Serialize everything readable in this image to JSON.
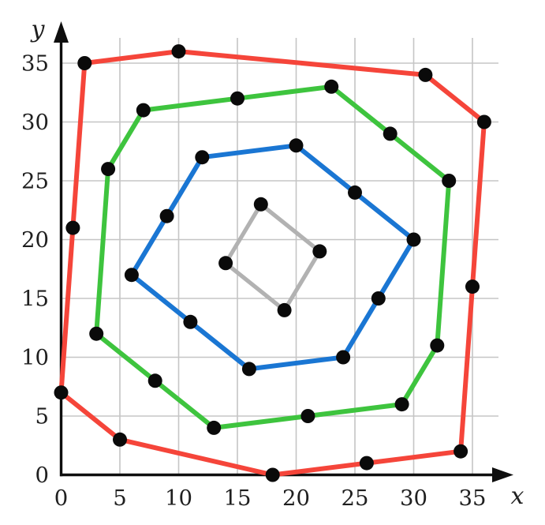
{
  "chart_data": {
    "type": "line",
    "title": "",
    "subtitle": "",
    "xlabel": "x",
    "ylabel": "y",
    "xlim": [
      0,
      38.5
    ],
    "ylim": [
      0,
      38.5
    ],
    "grid": true,
    "legend": "none",
    "x_ticks": [
      0,
      5,
      10,
      15,
      20,
      25,
      30,
      35
    ],
    "y_ticks": [
      0,
      5,
      10,
      15,
      20,
      25,
      30,
      35
    ],
    "marker_color": "#0a0a0a",
    "axis_color": "#0e0e0e",
    "grid_color": "#c5c5c5",
    "tick_label_color": "#1f1f1f",
    "series": [
      {
        "name": "outer-ring-red",
        "color": "#f5453a",
        "closed": true,
        "points": [
          [
            2,
            35
          ],
          [
            10,
            36
          ],
          [
            31,
            34
          ],
          [
            36,
            30
          ],
          [
            35,
            16
          ],
          [
            34,
            2
          ],
          [
            26,
            1
          ],
          [
            18,
            0
          ],
          [
            5,
            3
          ],
          [
            0,
            7
          ],
          [
            1,
            21
          ]
        ]
      },
      {
        "name": "middle-ring-green",
        "color": "#3ec43e",
        "closed": true,
        "points": [
          [
            4,
            26
          ],
          [
            7,
            31
          ],
          [
            15,
            32
          ],
          [
            23,
            33
          ],
          [
            28,
            29
          ],
          [
            33,
            25
          ],
          [
            32,
            11
          ],
          [
            29,
            6
          ],
          [
            21,
            5
          ],
          [
            13,
            4
          ],
          [
            8,
            8
          ],
          [
            3,
            12
          ]
        ]
      },
      {
        "name": "inner-ring-blue",
        "color": "#1a76d3",
        "closed": true,
        "points": [
          [
            12,
            27
          ],
          [
            20,
            28
          ],
          [
            25,
            24
          ],
          [
            30,
            20
          ],
          [
            27,
            15
          ],
          [
            24,
            10
          ],
          [
            16,
            9
          ],
          [
            11,
            13
          ],
          [
            6,
            17
          ],
          [
            9,
            22
          ]
        ]
      },
      {
        "name": "center-square-gray",
        "color": "#b2b2b2",
        "closed": true,
        "points": [
          [
            17,
            23
          ],
          [
            22,
            19
          ],
          [
            19,
            14
          ],
          [
            14,
            18
          ]
        ]
      }
    ]
  }
}
